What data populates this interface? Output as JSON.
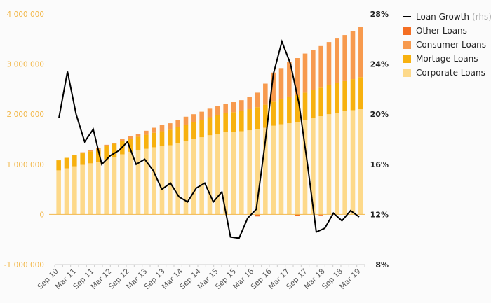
{
  "chart_data": {
    "type": "bar",
    "stacked": true,
    "x_tick_labels": [
      "Sep 10",
      "Mar 11",
      "Sep 11",
      "Mar 12",
      "Sep 12",
      "Mar 13",
      "Sep 13",
      "Mar 14",
      "Sep 14",
      "Mar 15",
      "Sep 15",
      "Mar 16",
      "Sep 16",
      "Mar 17",
      "Sep 17",
      "Mar 18",
      "Sep 18",
      "Mar 19"
    ],
    "y_left": {
      "min": -1000000,
      "max": 4000000,
      "ticks": [
        "-1 000 000",
        "0",
        "1 000 000",
        "2 000 000",
        "3 000 000",
        "4 000 000"
      ]
    },
    "y_right": {
      "min": 8,
      "max": 28,
      "ticks": [
        "8%",
        "12%",
        "16%",
        "20%",
        "24%",
        "28%"
      ]
    },
    "series": [
      {
        "name": "Corporate Loans",
        "color": "#fdd98a",
        "values": [
          880000,
          920000,
          960000,
          990000,
          1020000,
          1050000,
          1100000,
          1150000,
          1200000,
          1250000,
          1280000,
          1310000,
          1340000,
          1360000,
          1380000,
          1420000,
          1460000,
          1500000,
          1540000,
          1580000,
          1610000,
          1640000,
          1650000,
          1660000,
          1680000,
          1700000,
          1730000,
          1770000,
          1800000,
          1820000,
          1840000,
          1880000,
          1920000,
          1960000,
          2000000,
          2030000,
          2060000,
          2080000,
          2100000
        ]
      },
      {
        "name": "Mortage Loans",
        "color": "#f7b10f",
        "values": [
          200000,
          210000,
          220000,
          230000,
          240000,
          250000,
          260000,
          260000,
          260000,
          260000,
          270000,
          280000,
          290000,
          300000,
          310000,
          320000,
          330000,
          340000,
          350000,
          360000,
          370000,
          380000,
          390000,
          400000,
          420000,
          440000,
          460000,
          480000,
          500000,
          520000,
          540000,
          550000,
          560000,
          570000,
          580000,
          590000,
          600000,
          620000,
          640000
        ]
      },
      {
        "name": "Consumer Loans",
        "color": "#f79a4e",
        "values": [
          0,
          0,
          0,
          20000,
          30000,
          20000,
          30000,
          20000,
          40000,
          50000,
          60000,
          80000,
          100000,
          120000,
          130000,
          140000,
          160000,
          160000,
          160000,
          170000,
          180000,
          180000,
          200000,
          220000,
          240000,
          290000,
          420000,
          580000,
          620000,
          700000,
          740000,
          780000,
          800000,
          830000,
          860000,
          890000,
          920000,
          960000,
          1000000
        ]
      },
      {
        "name": "Other Loans",
        "color": "#f46e23",
        "values": [
          0,
          0,
          0,
          0,
          0,
          0,
          0,
          0,
          0,
          0,
          0,
          0,
          0,
          0,
          0,
          0,
          0,
          0,
          0,
          0,
          0,
          0,
          0,
          0,
          0,
          -40000,
          0,
          0,
          0,
          0,
          -30000,
          0,
          0,
          -20000,
          0,
          0,
          0,
          0,
          0
        ]
      },
      {
        "name": "Loan Growth",
        "axis": "right",
        "type": "line",
        "color": "#000000",
        "values": [
          19.7,
          23.4,
          20.0,
          17.8,
          18.8,
          16.0,
          16.7,
          17.1,
          17.8,
          16.0,
          16.4,
          15.5,
          14.0,
          14.5,
          13.4,
          13.0,
          14.1,
          14.5,
          13.0,
          13.8,
          10.2,
          10.1,
          11.7,
          12.4,
          17.5,
          23.2,
          25.8,
          24.0,
          20.8,
          15.9,
          10.6,
          10.9,
          12.1,
          11.5,
          12.3,
          11.8
        ]
      }
    ],
    "legend": {
      "position": "right",
      "line_suffix": "(rhs)"
    },
    "grid": false
  }
}
